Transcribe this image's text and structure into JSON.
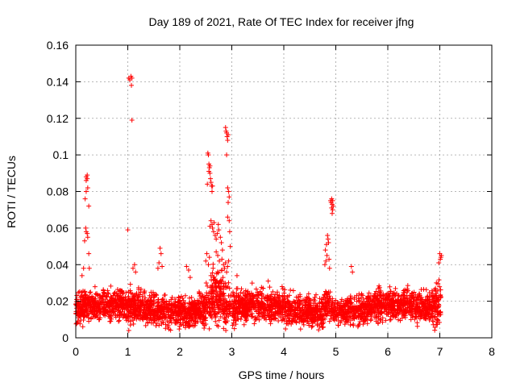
{
  "chart_data": {
    "type": "scatter",
    "title": "Day 189 of 2021, Rate Of TEC Index for receiver jfng",
    "xlabel": "GPS time / hours",
    "ylabel": "ROTI / TECUs",
    "xlim": [
      0,
      8
    ],
    "ylim": [
      0,
      0.16
    ],
    "xticks": [
      "0",
      "1",
      "2",
      "3",
      "4",
      "5",
      "6",
      "7",
      "8"
    ],
    "yticks": [
      "0",
      "0.02",
      "0.04",
      "0.06",
      "0.08",
      "0.1",
      "0.12",
      "0.14",
      "0.16"
    ],
    "grid": true,
    "marker": "+",
    "color": "#ff0000",
    "series": [
      {
        "name": "ROTI",
        "description_of_bulk": "dense band of points between ~0.005 and ~0.028 TECUs across 0–7 h",
        "points": [
          [
            0.2,
            0.088
          ],
          [
            0.2,
            0.086
          ],
          [
            0.22,
            0.089
          ],
          [
            0.22,
            0.087
          ],
          [
            0.2,
            0.08
          ],
          [
            0.23,
            0.082
          ],
          [
            0.18,
            0.076
          ],
          [
            0.25,
            0.072
          ],
          [
            0.19,
            0.06
          ],
          [
            0.2,
            0.058
          ],
          [
            0.22,
            0.057
          ],
          [
            0.17,
            0.053
          ],
          [
            0.23,
            0.055
          ],
          [
            0.25,
            0.046
          ],
          [
            0.26,
            0.038
          ],
          [
            0.15,
            0.038
          ],
          [
            0.12,
            0.034
          ],
          [
            1.02,
            0.142
          ],
          [
            1.04,
            0.141
          ],
          [
            1.06,
            0.143
          ],
          [
            1.08,
            0.142
          ],
          [
            1.07,
            0.138
          ],
          [
            1.08,
            0.119
          ],
          [
            1.0,
            0.059
          ],
          [
            1.1,
            0.038
          ],
          [
            1.13,
            0.04
          ],
          [
            1.15,
            0.036
          ],
          [
            1.58,
            0.038
          ],
          [
            1.6,
            0.041
          ],
          [
            1.62,
            0.049
          ],
          [
            1.64,
            0.046
          ],
          [
            1.66,
            0.039
          ],
          [
            2.13,
            0.039
          ],
          [
            2.17,
            0.037
          ],
          [
            2.2,
            0.033
          ],
          [
            2.54,
            0.101
          ],
          [
            2.55,
            0.1
          ],
          [
            2.56,
            0.095
          ],
          [
            2.57,
            0.093
          ],
          [
            2.58,
            0.09
          ],
          [
            2.59,
            0.087
          ],
          [
            2.6,
            0.085
          ],
          [
            2.61,
            0.083
          ],
          [
            2.62,
            0.08
          ],
          [
            2.63,
            0.083
          ],
          [
            2.53,
            0.084
          ],
          [
            2.56,
            0.091
          ],
          [
            2.58,
            0.094
          ],
          [
            2.6,
            0.064
          ],
          [
            2.62,
            0.062
          ],
          [
            2.65,
            0.058
          ],
          [
            2.68,
            0.056
          ],
          [
            2.7,
            0.054
          ],
          [
            2.72,
            0.057
          ],
          [
            2.75,
            0.059
          ],
          [
            2.78,
            0.055
          ],
          [
            2.8,
            0.052
          ],
          [
            2.82,
            0.048
          ],
          [
            2.58,
            0.061
          ],
          [
            2.63,
            0.06
          ],
          [
            2.66,
            0.063
          ],
          [
            2.74,
            0.062
          ],
          [
            2.5,
            0.042
          ],
          [
            2.52,
            0.046
          ],
          [
            2.55,
            0.04
          ],
          [
            2.57,
            0.044
          ],
          [
            2.64,
            0.038
          ],
          [
            2.7,
            0.047
          ],
          [
            2.73,
            0.045
          ],
          [
            2.76,
            0.042
          ],
          [
            2.81,
            0.043
          ],
          [
            2.84,
            0.04
          ],
          [
            2.86,
            0.038
          ],
          [
            2.88,
            0.041
          ],
          [
            2.9,
            0.036
          ],
          [
            2.92,
            0.039
          ],
          [
            2.94,
            0.042
          ],
          [
            2.6,
            0.034
          ],
          [
            2.67,
            0.032
          ],
          [
            2.71,
            0.035
          ],
          [
            2.78,
            0.031
          ],
          [
            2.83,
            0.033
          ],
          [
            2.88,
            0.115
          ],
          [
            2.89,
            0.113
          ],
          [
            2.9,
            0.112
          ],
          [
            2.91,
            0.11
          ],
          [
            2.92,
            0.108
          ],
          [
            2.93,
            0.111
          ],
          [
            2.9,
            0.1
          ],
          [
            2.92,
            0.082
          ],
          [
            2.94,
            0.08
          ],
          [
            2.95,
            0.077
          ],
          [
            2.93,
            0.074
          ],
          [
            2.92,
            0.066
          ],
          [
            2.95,
            0.064
          ],
          [
            2.96,
            0.058
          ],
          [
            2.97,
            0.05
          ],
          [
            3.1,
            0.034
          ],
          [
            3.7,
            0.031
          ],
          [
            4.8,
            0.048
          ],
          [
            4.82,
            0.051
          ],
          [
            4.84,
            0.056
          ],
          [
            4.85,
            0.054
          ],
          [
            4.86,
            0.052
          ],
          [
            4.83,
            0.045
          ],
          [
            4.81,
            0.042
          ],
          [
            4.79,
            0.04
          ],
          [
            4.87,
            0.043
          ],
          [
            4.88,
            0.038
          ],
          [
            4.9,
            0.075
          ],
          [
            4.91,
            0.074
          ],
          [
            4.92,
            0.076
          ],
          [
            4.93,
            0.073
          ],
          [
            4.94,
            0.075
          ],
          [
            4.92,
            0.071
          ],
          [
            4.94,
            0.07
          ],
          [
            4.95,
            0.072
          ],
          [
            4.93,
            0.068
          ],
          [
            4.88,
            0.009
          ],
          [
            4.9,
            0.012
          ],
          [
            5.3,
            0.039
          ],
          [
            5.32,
            0.036
          ],
          [
            7.0,
            0.046
          ],
          [
            7.02,
            0.044
          ],
          [
            7.01,
            0.043
          ],
          [
            6.98,
            0.041
          ],
          [
            7.03,
            0.045
          ],
          [
            0.02,
            0.008
          ],
          [
            0.05,
            0.011
          ],
          [
            1.02,
            0.004
          ],
          [
            1.05,
            0.007
          ],
          [
            3.05,
            0.005
          ]
        ]
      }
    ]
  }
}
